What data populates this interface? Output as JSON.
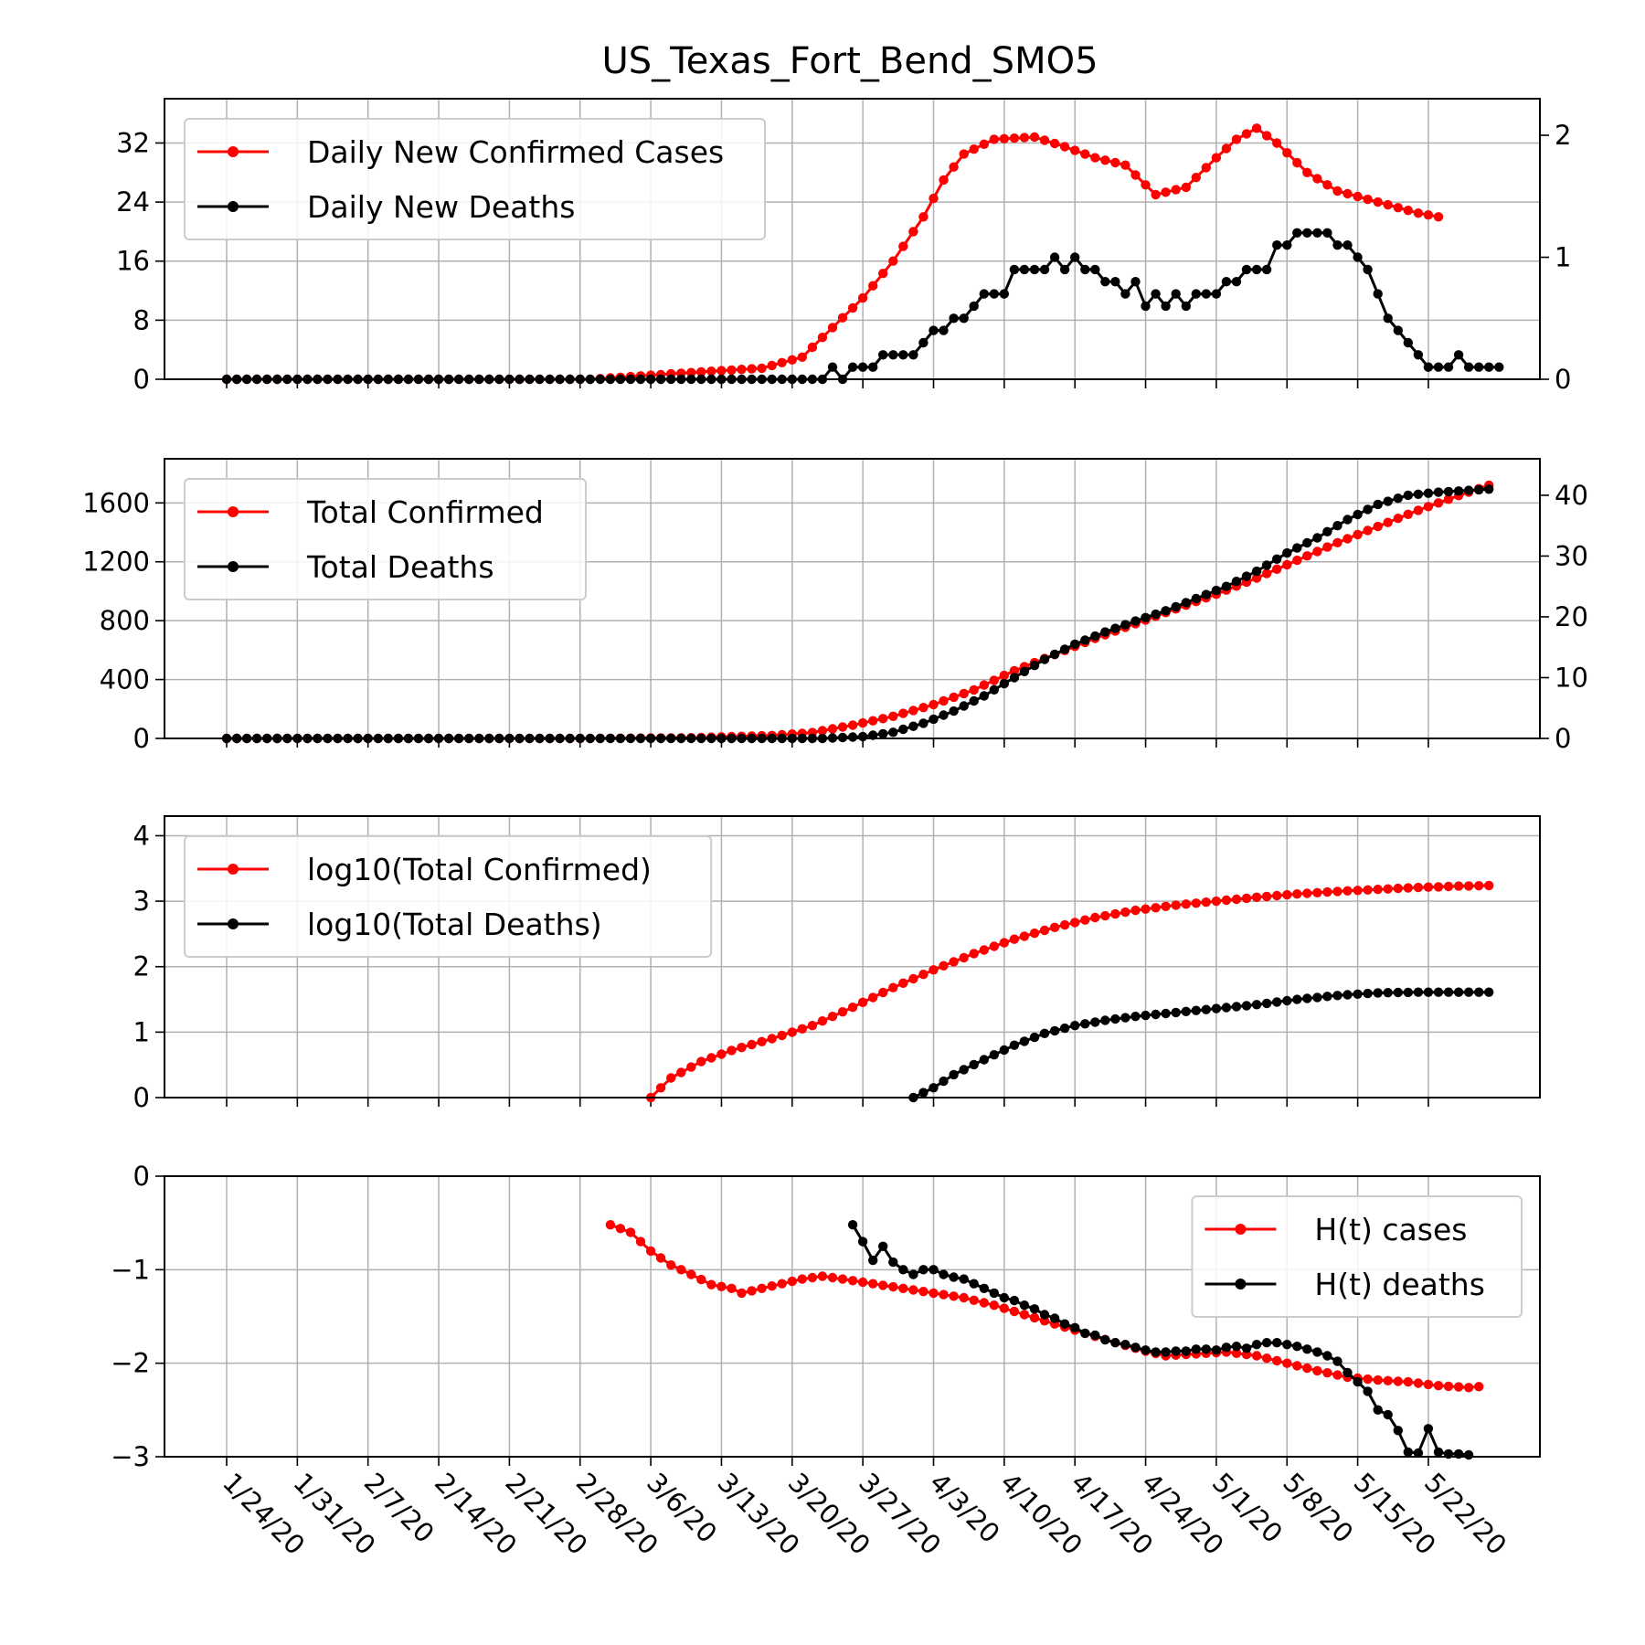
{
  "title": "US_Texas_Fort_Bend_SMO5",
  "colors": {
    "cases": "#ff0000",
    "deaths": "#000000",
    "grid": "#b0b0b0"
  },
  "x_tick_labels": [
    "1/24/20",
    "1/31/20",
    "2/7/20",
    "2/14/20",
    "2/21/20",
    "2/28/20",
    "3/6/20",
    "3/13/20",
    "3/20/20",
    "3/27/20",
    "4/3/20",
    "4/10/20",
    "4/17/20",
    "4/24/20",
    "5/1/20",
    "5/8/20",
    "5/15/20",
    "5/22/20"
  ],
  "chart_data": [
    {
      "type": "line",
      "x_range": [
        "1/24/20",
        "5/24/20"
      ],
      "ylim_left": [
        0,
        38
      ],
      "ylim_right": [
        0,
        2.3
      ],
      "yticks_left": [
        "0",
        "8",
        "16",
        "24",
        "32"
      ],
      "yticks_right": [
        "0",
        "1",
        "2"
      ],
      "legend": "upper-left",
      "grid": true,
      "series": [
        {
          "name": "Daily New Confirmed Cases",
          "axis": "left",
          "start": 0,
          "knots": [
            [
              0,
              0
            ],
            [
              36,
              0
            ],
            [
              47,
              1
            ],
            [
              53,
              1.5
            ],
            [
              57,
              3
            ],
            [
              60,
              7
            ],
            [
              63,
              11
            ],
            [
              66,
              16
            ],
            [
              69,
              22
            ],
            [
              71,
              27
            ],
            [
              73,
              30.5
            ],
            [
              76,
              32.5
            ],
            [
              80,
              32.8
            ],
            [
              83,
              31.5
            ],
            [
              86,
              30
            ],
            [
              89,
              29
            ],
            [
              92,
              25
            ],
            [
              95,
              26
            ],
            [
              98,
              30
            ],
            [
              100,
              32.5
            ],
            [
              102,
              34
            ],
            [
              104,
              32
            ],
            [
              107,
              28
            ],
            [
              110,
              25.5
            ],
            [
              114,
              24
            ],
            [
              118,
              22.5
            ],
            [
              120,
              22
            ]
          ]
        },
        {
          "name": "Daily New Deaths",
          "axis": "right",
          "start": 0,
          "values": [
            0,
            0,
            0,
            0,
            0,
            0,
            0,
            0,
            0,
            0,
            0,
            0,
            0,
            0,
            0,
            0,
            0,
            0,
            0,
            0,
            0,
            0,
            0,
            0,
            0,
            0,
            0,
            0,
            0,
            0,
            0,
            0,
            0,
            0,
            0,
            0,
            0,
            0,
            0,
            0,
            0,
            0,
            0,
            0,
            0,
            0,
            0,
            0,
            0,
            0,
            0,
            0,
            0,
            0,
            0,
            0,
            0,
            0,
            0,
            0,
            0.1,
            0,
            0.1,
            0.1,
            0.1,
            0.2,
            0.2,
            0.2,
            0.2,
            0.3,
            0.4,
            0.4,
            0.5,
            0.5,
            0.6,
            0.7,
            0.7,
            0.7,
            0.9,
            0.9,
            0.9,
            0.9,
            1.0,
            0.9,
            1.0,
            0.9,
            0.9,
            0.8,
            0.8,
            0.7,
            0.8,
            0.6,
            0.7,
            0.6,
            0.7,
            0.6,
            0.7,
            0.7,
            0.7,
            0.8,
            0.8,
            0.9,
            0.9,
            0.9,
            1.1,
            1.1,
            1.2,
            1.2,
            1.2,
            1.2,
            1.1,
            1.1,
            1.0,
            0.9,
            0.7,
            0.5,
            0.4,
            0.3,
            0.2,
            0.1,
            0.1,
            0.1,
            0.2,
            0.1,
            0.1,
            0.1,
            0.1
          ]
        }
      ]
    },
    {
      "type": "line",
      "x_range": [
        "1/24/20",
        "5/24/20"
      ],
      "ylim_left": [
        0,
        1900
      ],
      "ylim_right": [
        0,
        46
      ],
      "yticks_left": [
        "0",
        "400",
        "800",
        "1200",
        "1600"
      ],
      "yticks_right": [
        "0",
        "10",
        "20",
        "30",
        "40"
      ],
      "legend": "upper-left",
      "grid": true,
      "series": [
        {
          "name": "Total Confirmed",
          "axis": "left",
          "start": 0,
          "knots": [
            [
              0,
              0
            ],
            [
              36,
              0
            ],
            [
              46,
              5
            ],
            [
              54,
              20
            ],
            [
              58,
              40
            ],
            [
              62,
              90
            ],
            [
              66,
              150
            ],
            [
              70,
              230
            ],
            [
              74,
              330
            ],
            [
              78,
              460
            ],
            [
              82,
              570
            ],
            [
              86,
              680
            ],
            [
              90,
              780
            ],
            [
              94,
              880
            ],
            [
              98,
              980
            ],
            [
              102,
              1090
            ],
            [
              106,
              1210
            ],
            [
              110,
              1330
            ],
            [
              114,
              1440
            ],
            [
              118,
              1550
            ],
            [
              122,
              1650
            ],
            [
              125,
              1720
            ]
          ]
        },
        {
          "name": "Total Deaths",
          "axis": "right",
          "start": 0,
          "knots": [
            [
              0,
              0
            ],
            [
              59,
              0
            ],
            [
              63,
              0.3
            ],
            [
              66,
              1
            ],
            [
              69,
              2.5
            ],
            [
              72,
              4.5
            ],
            [
              75,
              7
            ],
            [
              78,
              10
            ],
            [
              81,
              13
            ],
            [
              84,
              15.5
            ],
            [
              87,
              17.5
            ],
            [
              90,
              19.3
            ],
            [
              93,
              21
            ],
            [
              96,
              23
            ],
            [
              99,
              25
            ],
            [
              102,
              27.5
            ],
            [
              105,
              30.5
            ],
            [
              108,
              33
            ],
            [
              111,
              36
            ],
            [
              114,
              38.5
            ],
            [
              117,
              40
            ],
            [
              120,
              40.5
            ],
            [
              125,
              41
            ]
          ]
        }
      ]
    },
    {
      "type": "line",
      "x_range": [
        "1/24/20",
        "5/24/20"
      ],
      "ylim": [
        0,
        4.3
      ],
      "yticks": [
        "0",
        "1",
        "2",
        "3",
        "4"
      ],
      "legend": "upper-left",
      "grid": true,
      "series": [
        {
          "name": "log10(Total Confirmed)",
          "start": 42,
          "knots": [
            [
              42,
              0
            ],
            [
              44,
              0.3
            ],
            [
              47,
              0.55
            ],
            [
              50,
              0.72
            ],
            [
              54,
              0.9
            ],
            [
              58,
              1.1
            ],
            [
              62,
              1.38
            ],
            [
              66,
              1.68
            ],
            [
              70,
              1.95
            ],
            [
              74,
              2.2
            ],
            [
              78,
              2.42
            ],
            [
              82,
              2.6
            ],
            [
              86,
              2.75
            ],
            [
              90,
              2.86
            ],
            [
              94,
              2.94
            ],
            [
              98,
              3.0
            ],
            [
              102,
              3.06
            ],
            [
              106,
              3.11
            ],
            [
              110,
              3.15
            ],
            [
              114,
              3.18
            ],
            [
              118,
              3.21
            ],
            [
              122,
              3.23
            ],
            [
              125,
              3.24
            ]
          ]
        },
        {
          "name": "log10(Total Deaths)",
          "start": 68,
          "knots": [
            [
              68,
              0
            ],
            [
              70,
              0.15
            ],
            [
              72,
              0.35
            ],
            [
              75,
              0.58
            ],
            [
              78,
              0.8
            ],
            [
              81,
              0.98
            ],
            [
              84,
              1.1
            ],
            [
              87,
              1.18
            ],
            [
              90,
              1.24
            ],
            [
              94,
              1.3
            ],
            [
              98,
              1.36
            ],
            [
              102,
              1.42
            ],
            [
              106,
              1.5
            ],
            [
              110,
              1.56
            ],
            [
              114,
              1.6
            ],
            [
              118,
              1.61
            ],
            [
              125,
              1.61
            ]
          ]
        }
      ]
    },
    {
      "type": "line",
      "x_range": [
        "1/24/20",
        "5/24/20"
      ],
      "ylim": [
        -3,
        0
      ],
      "yticks": [
        "0",
        "−1",
        "−2",
        "−3"
      ],
      "legend": "upper-right",
      "grid": true,
      "series": [
        {
          "name": "H(t) cases",
          "start": 38,
          "knots": [
            [
              38,
              -0.52
            ],
            [
              40,
              -0.6
            ],
            [
              42,
              -0.8
            ],
            [
              44,
              -0.95
            ],
            [
              46,
              -1.05
            ],
            [
              48,
              -1.16
            ],
            [
              50,
              -1.2
            ],
            [
              51,
              -1.25
            ],
            [
              53,
              -1.2
            ],
            [
              55,
              -1.15
            ],
            [
              57,
              -1.1
            ],
            [
              59,
              -1.07
            ],
            [
              61,
              -1.1
            ],
            [
              64,
              -1.15
            ],
            [
              67,
              -1.2
            ],
            [
              70,
              -1.25
            ],
            [
              73,
              -1.3
            ],
            [
              76,
              -1.38
            ],
            [
              79,
              -1.48
            ],
            [
              82,
              -1.58
            ],
            [
              85,
              -1.68
            ],
            [
              88,
              -1.78
            ],
            [
              91,
              -1.87
            ],
            [
              93,
              -1.92
            ],
            [
              96,
              -1.9
            ],
            [
              99,
              -1.88
            ],
            [
              102,
              -1.92
            ],
            [
              105,
              -2.0
            ],
            [
              108,
              -2.08
            ],
            [
              111,
              -2.15
            ],
            [
              114,
              -2.18
            ],
            [
              117,
              -2.2
            ],
            [
              120,
              -2.24
            ],
            [
              123,
              -2.26
            ],
            [
              124,
              -2.25
            ]
          ]
        },
        {
          "name": "H(t) deaths",
          "start": 62,
          "values": [
            -0.52,
            -0.7,
            -0.9,
            -0.75,
            -0.92,
            -1.0,
            -1.05,
            -1.0,
            -1.0,
            -1.05,
            -1.08,
            -1.1,
            -1.15,
            -1.2,
            -1.25,
            -1.3,
            -1.33,
            -1.38,
            -1.42,
            -1.48,
            -1.52,
            -1.58,
            -1.62,
            -1.68,
            -1.7,
            -1.75,
            -1.78,
            -1.8,
            -1.83,
            -1.86,
            -1.88,
            -1.88,
            -1.87,
            -1.87,
            -1.85,
            -1.85,
            -1.86,
            -1.83,
            -1.82,
            -1.84,
            -1.8,
            -1.78,
            -1.78,
            -1.8,
            -1.82,
            -1.85,
            -1.88,
            -1.92,
            -1.98,
            -2.1,
            -2.2,
            -2.3,
            -2.5,
            -2.55,
            -2.72,
            -2.95,
            -2.96,
            -2.7,
            -2.95,
            -2.97,
            -2.97,
            -2.98
          ]
        }
      ]
    }
  ]
}
